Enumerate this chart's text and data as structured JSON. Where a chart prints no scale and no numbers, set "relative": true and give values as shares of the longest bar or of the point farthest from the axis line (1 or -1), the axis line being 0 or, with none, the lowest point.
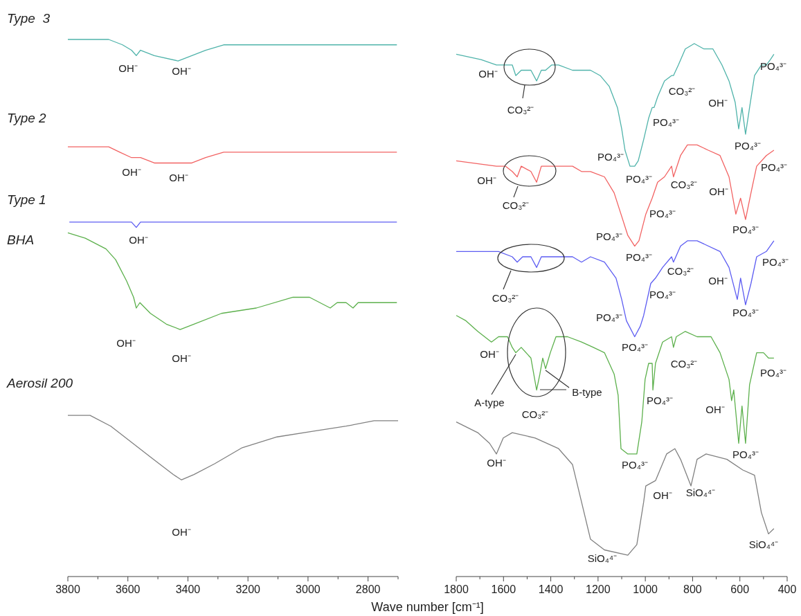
{
  "chart_data": [
    {
      "type": "line",
      "relative": true,
      "xlim": [
        3800,
        2700
      ],
      "tick_labels": "x",
      "xticks": [
        3800,
        {
          "value": 3700,
          "label": null
        },
        3600,
        {
          "value": 3500,
          "label": null
        },
        3400,
        {
          "value": 3300,
          "label": null
        },
        3200,
        {
          "value": 3100,
          "label": null
        },
        3000,
        {
          "value": 2900,
          "label": null
        },
        2800,
        {
          "value": 2700,
          "label": null
        }
      ],
      "series": [
        {
          "name": "Type  3",
          "color": "#4fb3aa",
          "x": [
            3800,
            3664,
            3618,
            3588,
            3572,
            3558,
            3512,
            3433,
            3387,
            3341,
            3281,
            3166,
            3050,
            2896,
            2704
          ],
          "values": [
            1.0,
            1.0,
            0.99,
            0.98,
            0.97,
            0.98,
            0.97,
            0.96,
            0.97,
            0.98,
            0.99,
            0.99,
            0.99,
            0.99,
            0.99
          ]
        },
        {
          "name": "Type 2",
          "color": "#f26262",
          "x": [
            3800,
            3664,
            3627,
            3588,
            3572,
            3558,
            3512,
            3442,
            3387,
            3341,
            3281,
            3166,
            2972,
            2704
          ],
          "values": [
            0.8,
            0.8,
            0.79,
            0.78,
            0.78,
            0.78,
            0.77,
            0.77,
            0.77,
            0.78,
            0.79,
            0.79,
            0.79,
            0.79
          ]
        },
        {
          "name": "Type 1",
          "color": "#5c5cf2",
          "x": [
            3795,
            3627,
            3588,
            3572,
            3558,
            3433,
            3281,
            3050,
            2935,
            2704
          ],
          "values": [
            0.66,
            0.66,
            0.66,
            0.65,
            0.66,
            0.66,
            0.66,
            0.66,
            0.66,
            0.66
          ]
        },
        {
          "name": "BHA",
          "color": "#5cb04c",
          "x": [
            3800,
            3742,
            3673,
            3641,
            3604,
            3581,
            3572,
            3560,
            3525,
            3472,
            3426,
            3380,
            3288,
            3172,
            3050,
            2995,
            2926,
            2903,
            2873,
            2850,
            2833,
            2704
          ],
          "values": [
            0.64,
            0.63,
            0.61,
            0.59,
            0.55,
            0.52,
            0.5,
            0.51,
            0.49,
            0.47,
            0.46,
            0.47,
            0.49,
            0.5,
            0.52,
            0.52,
            0.5,
            0.51,
            0.51,
            0.5,
            0.51,
            0.51
          ]
        },
        {
          "name": "Aerosil 200",
          "color": "#808080",
          "x": [
            3800,
            3726,
            3657,
            3588,
            3519,
            3449,
            3422,
            3380,
            3311,
            3219,
            3103,
            2988,
            2873,
            2780,
            2700
          ],
          "values": [
            0.3,
            0.3,
            0.28,
            0.25,
            0.22,
            0.19,
            0.18,
            0.19,
            0.21,
            0.24,
            0.26,
            0.27,
            0.28,
            0.29,
            0.29
          ]
        }
      ],
      "annotations": [
        "OH⁻",
        "OH⁻",
        "OH⁻",
        "OH⁻",
        "OH⁻",
        "OH⁻",
        "OH⁻",
        "OH⁻"
      ]
    },
    {
      "type": "line",
      "relative": true,
      "xlim": [
        1800,
        400
      ],
      "tick_labels": "x",
      "xlabel": "Wave number [cm⁻¹]",
      "xticks": [
        1800,
        {
          "value": 1700,
          "label": null
        },
        1600,
        {
          "value": 1500,
          "label": null
        },
        1400,
        {
          "value": 1300,
          "label": null
        },
        1200,
        {
          "value": 1100,
          "label": null
        },
        1000,
        {
          "value": 900,
          "label": null
        },
        800,
        {
          "value": 700,
          "label": null
        },
        600,
        {
          "value": 500,
          "label": null
        },
        400
      ],
      "series": [
        {
          "color": "#4fb3aa",
          "x": [
            1800,
            1695,
            1630,
            1586,
            1563,
            1548,
            1525,
            1484,
            1460,
            1440,
            1422,
            1396,
            1367,
            1308,
            1270,
            1232,
            1191,
            1153,
            1118,
            1100,
            1086,
            1065,
            1045,
            1030,
            1007,
            986,
            971,
            963,
            948,
            919,
            889,
            881,
            860,
            831,
            793,
            752,
            714,
            676,
            646,
            620,
            605,
            591,
            576,
            559,
            538,
            509,
            488,
            471,
            456
          ],
          "values": [
            0.98,
            0.97,
            0.96,
            0.96,
            0.96,
            0.94,
            0.95,
            0.95,
            0.93,
            0.95,
            0.95,
            0.96,
            0.96,
            0.95,
            0.95,
            0.95,
            0.94,
            0.92,
            0.88,
            0.84,
            0.8,
            0.77,
            0.77,
            0.78,
            0.82,
            0.86,
            0.88,
            0.88,
            0.9,
            0.93,
            0.94,
            0.94,
            0.96,
            0.99,
            1.0,
            0.99,
            0.99,
            0.96,
            0.93,
            0.89,
            0.84,
            0.88,
            0.83,
            0.88,
            0.94,
            0.96,
            0.96,
            0.97,
            0.98
          ]
        },
        {
          "color": "#f26262",
          "x": [
            1800,
            1630,
            1592,
            1563,
            1542,
            1525,
            1484,
            1460,
            1440,
            1416,
            1367,
            1308,
            1270,
            1232,
            1173,
            1132,
            1103,
            1074,
            1045,
            1027,
            998,
            971,
            948,
            919,
            889,
            881,
            851,
            822,
            781,
            734,
            684,
            646,
            617,
            597,
            576,
            553,
            529,
            488,
            456
          ],
          "values": [
            0.78,
            0.77,
            0.77,
            0.76,
            0.75,
            0.77,
            0.76,
            0.74,
            0.77,
            0.77,
            0.77,
            0.77,
            0.76,
            0.76,
            0.75,
            0.72,
            0.68,
            0.64,
            0.62,
            0.63,
            0.68,
            0.71,
            0.74,
            0.75,
            0.77,
            0.75,
            0.79,
            0.81,
            0.81,
            0.8,
            0.79,
            0.75,
            0.68,
            0.71,
            0.67,
            0.72,
            0.77,
            0.79,
            0.8
          ]
        },
        {
          "color": "#5c5cf2",
          "x": [
            1800,
            1621,
            1563,
            1542,
            1519,
            1484,
            1460,
            1440,
            1416,
            1308,
            1270,
            1232,
            1173,
            1124,
            1100,
            1080,
            1045,
            1021,
            1007,
            977,
            957,
            927,
            889,
            881,
            851,
            822,
            781,
            684,
            646,
            611,
            597,
            576,
            553,
            529,
            488,
            456
          ],
          "values": [
            0.61,
            0.61,
            0.6,
            0.59,
            0.6,
            0.6,
            0.58,
            0.6,
            0.6,
            0.6,
            0.59,
            0.6,
            0.59,
            0.56,
            0.52,
            0.48,
            0.45,
            0.47,
            0.49,
            0.55,
            0.56,
            0.58,
            0.6,
            0.59,
            0.62,
            0.63,
            0.63,
            0.61,
            0.58,
            0.52,
            0.56,
            0.51,
            0.55,
            0.6,
            0.61,
            0.63
          ]
        },
        {
          "color": "#5cb04c",
          "x": [
            1800,
            1759,
            1709,
            1651,
            1621,
            1583,
            1563,
            1548,
            1525,
            1484,
            1460,
            1446,
            1434,
            1422,
            1402,
            1378,
            1329,
            1270,
            1220,
            1173,
            1132,
            1115,
            1103,
            1074,
            1036,
            1015,
            1001,
            986,
            971,
            968,
            957,
            927,
            889,
            881,
            869,
            831,
            781,
            722,
            684,
            646,
            635,
            626,
            605,
            591,
            576,
            559,
            529,
            500,
            479,
            456
          ],
          "values": [
            0.49,
            0.48,
            0.46,
            0.44,
            0.45,
            0.45,
            0.43,
            0.42,
            0.43,
            0.41,
            0.35,
            0.38,
            0.41,
            0.39,
            0.42,
            0.45,
            0.45,
            0.44,
            0.43,
            0.42,
            0.38,
            0.34,
            0.24,
            0.23,
            0.23,
            0.29,
            0.37,
            0.4,
            0.4,
            0.35,
            0.4,
            0.44,
            0.45,
            0.43,
            0.45,
            0.46,
            0.45,
            0.45,
            0.42,
            0.37,
            0.33,
            0.35,
            0.25,
            0.32,
            0.25,
            0.36,
            0.42,
            0.42,
            0.41,
            0.41
          ]
        },
        {
          "color": "#808080",
          "x": [
            1800,
            1709,
            1659,
            1630,
            1601,
            1563,
            1466,
            1367,
            1308,
            1270,
            1232,
            1173,
            1074,
            1036,
            1007,
            998,
            957,
            910,
            875,
            851,
            807,
            781,
            743,
            655,
            588,
            538,
            509,
            479,
            456
          ],
          "values": [
            0.29,
            0.27,
            0.25,
            0.23,
            0.26,
            0.27,
            0.26,
            0.24,
            0.21,
            0.14,
            0.07,
            0.05,
            0.04,
            0.06,
            0.14,
            0.17,
            0.18,
            0.23,
            0.24,
            0.22,
            0.17,
            0.22,
            0.23,
            0.22,
            0.2,
            0.19,
            0.12,
            0.08,
            0.09
          ]
        }
      ],
      "annotations": [
        "OH⁻",
        "CO₃²⁻",
        "CO₃²⁻",
        "OH⁻",
        "PO₄³⁻",
        "PO₄³⁻",
        "PO₄³⁻",
        "PO₄³⁻",
        "PO₄³⁻",
        "OH⁻",
        "CO₃²⁻",
        "CO₃²⁻",
        "OH⁻",
        "PO₄³⁻",
        "PO₄³⁻",
        "PO₄³⁻",
        "PO₄³⁻",
        "PO₄³⁻",
        "CO₃²⁻",
        "CO₃²⁻",
        "OH⁻",
        "PO₄³⁻",
        "PO₄³⁻",
        "PO₄³⁻",
        "PO₄³⁻",
        "PO₄³⁻",
        "OH⁻",
        "A-type",
        "CO₃²⁻",
        "B-type",
        "PO₄³⁻",
        "CO₃²⁻",
        "OH⁻",
        "PO₄³⁻",
        "PO₄³⁻",
        "PO₄³⁻",
        "OH⁻",
        "OH⁻",
        "SiO₄⁴⁻",
        "SiO₄⁴⁻",
        "SiO₄⁴⁻"
      ]
    }
  ]
}
